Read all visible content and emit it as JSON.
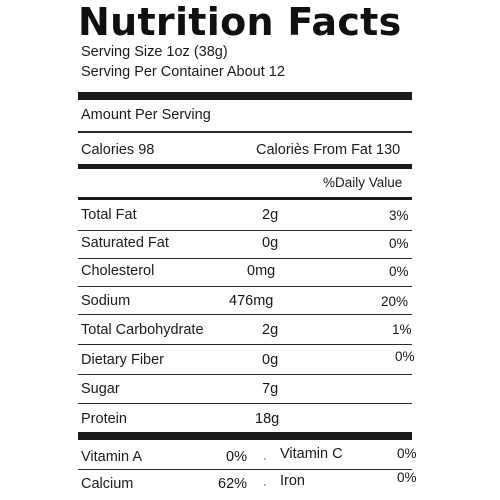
{
  "label": {
    "title": "Nutrition Facts",
    "serving_size": "Serving Size 1oz (38g)",
    "serving_per_container": "Serving Per Container About 12",
    "amount_per_serving": "Amount Per Serving",
    "calories": "Calories 98",
    "calories_from_fat": "Caloriès From Fat 130",
    "daily_value_header": "%Daily Value",
    "nutrients": [
      {
        "name": "Total Fat",
        "amount": "2g",
        "dv": "3%"
      },
      {
        "name": "Saturated Fat",
        "amount": "0g",
        "dv": "0%"
      },
      {
        "name": "Cholesterol",
        "amount": "0mg",
        "dv": "0%"
      },
      {
        "name": "Sodium",
        "amount": "476mg",
        "dv": "20%"
      },
      {
        "name": "Total Carbohydrate",
        "amount": "2g",
        "dv": "1%"
      },
      {
        "name": "Dietary Fiber",
        "amount": "0g",
        "dv": "0%"
      },
      {
        "name": "Sugar",
        "amount": "7g",
        "dv": ""
      },
      {
        "name": "Protein",
        "amount": "18g",
        "dv": ""
      }
    ],
    "vitamins": [
      {
        "name": "Vitamin A",
        "value": "0%",
        "separator": "·",
        "name2": "Vitamin C",
        "value2": "0%"
      },
      {
        "name": "Calcium",
        "value": "62%",
        "separator": "·",
        "name2": "Iron",
        "value2": "0%"
      }
    ]
  }
}
